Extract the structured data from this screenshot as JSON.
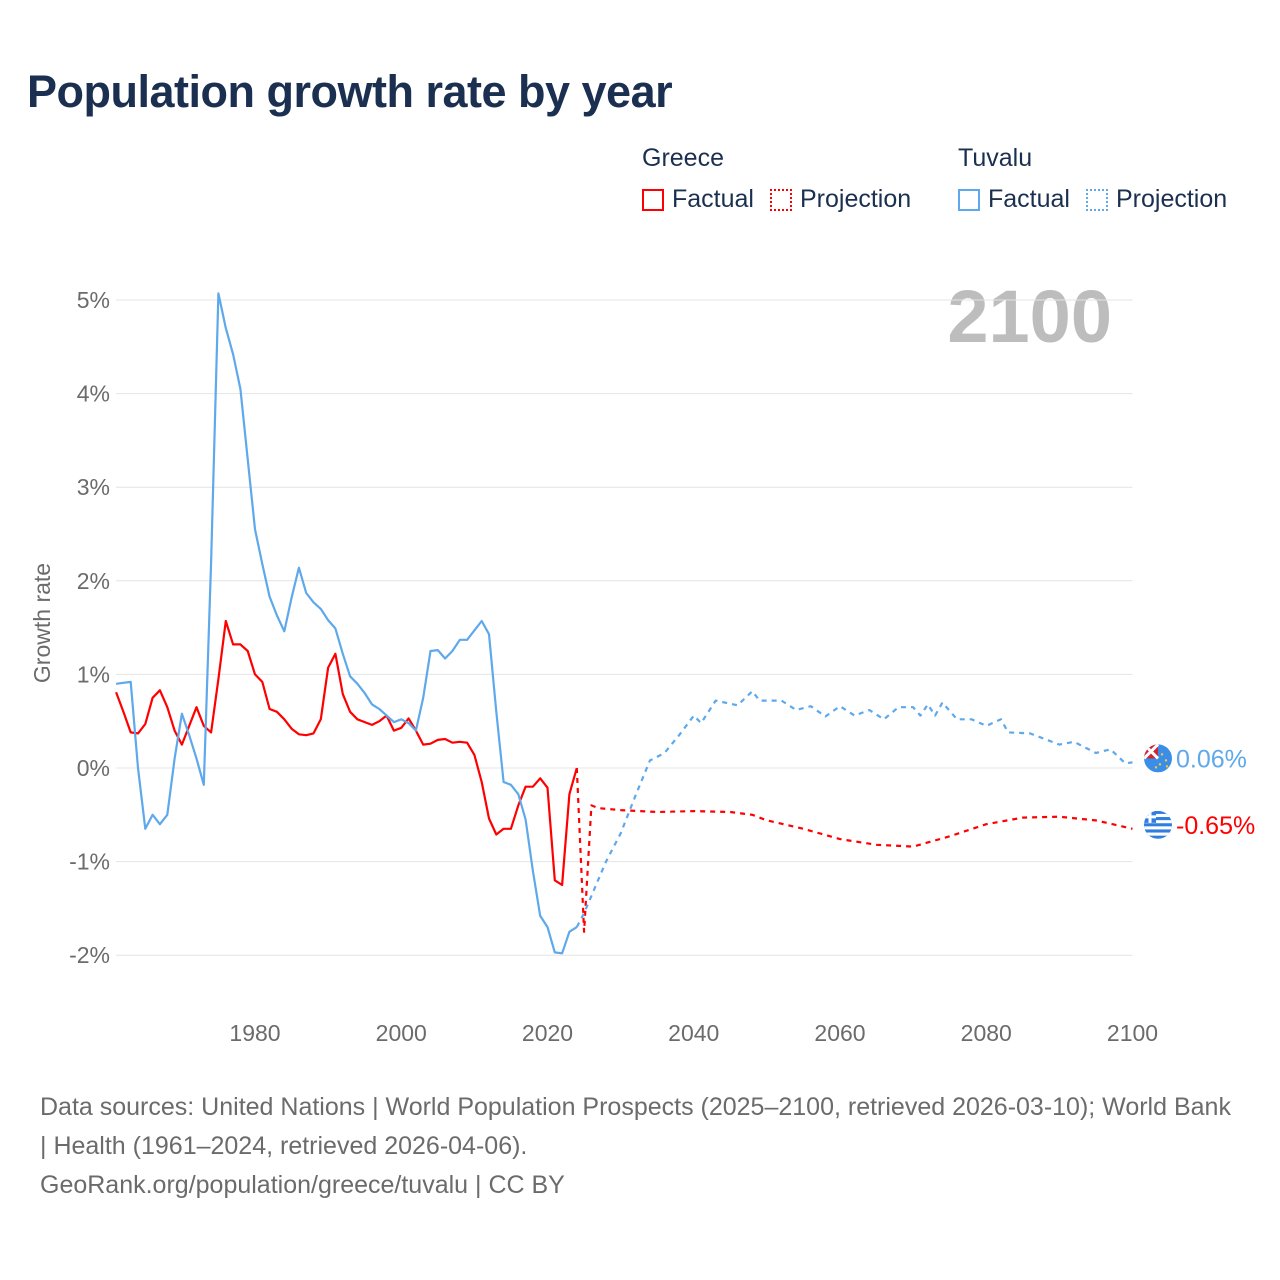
{
  "title": "Population growth rate by year",
  "legend": {
    "groups": [
      {
        "name": "Greece",
        "color": "#ff0000",
        "factual_label": "Factual",
        "projection_label": "Projection"
      },
      {
        "name": "Tuvalu",
        "color": "#5ea8ec",
        "factual_label": "Factual",
        "projection_label": "Projection"
      }
    ]
  },
  "year_watermark": "2100",
  "footer": {
    "sources": "Data sources: United Nations | World Population Prospects (2025–2100, retrieved 2026-03-10); World Bank | Health (1961–2024, retrieved 2026-04-06).",
    "credit": "GeoRank.org/population/greece/tuvalu | CC BY"
  },
  "chart_data": {
    "type": "line",
    "title": "Population growth rate by year",
    "xlabel": "",
    "ylabel": "Growth rate",
    "xlim": [
      1961,
      2100
    ],
    "ylim": [
      -2.5,
      5.3
    ],
    "x_ticks": [
      1980,
      2000,
      2020,
      2040,
      2060,
      2080,
      2100
    ],
    "y_ticks": [
      -2,
      -1,
      0,
      1,
      2,
      3,
      4,
      5
    ],
    "y_tick_labels": [
      "-2%",
      "-1%",
      "0%",
      "1%",
      "2%",
      "3%",
      "4%",
      "5%"
    ],
    "grid": true,
    "legend_position": "top-right",
    "series": [
      {
        "name": "Greece Factual",
        "country": "Greece",
        "style": "solid",
        "color": "#ff0000",
        "x": [
          1961,
          1962,
          1963,
          1964,
          1965,
          1966,
          1967,
          1968,
          1969,
          1970,
          1971,
          1972,
          1973,
          1974,
          1975,
          1976,
          1977,
          1978,
          1979,
          1980,
          1981,
          1982,
          1983,
          1984,
          1985,
          1986,
          1987,
          1988,
          1989,
          1990,
          1991,
          1992,
          1993,
          1994,
          1995,
          1996,
          1997,
          1998,
          1999,
          2000,
          2001,
          2002,
          2003,
          2004,
          2005,
          2006,
          2007,
          2008,
          2009,
          2010,
          2011,
          2012,
          2013,
          2014,
          2015,
          2016,
          2017,
          2018,
          2019,
          2020,
          2021,
          2022,
          2023,
          2024
        ],
        "y": [
          0.81,
          0.6,
          0.38,
          0.37,
          0.47,
          0.75,
          0.83,
          0.65,
          0.4,
          0.25,
          0.45,
          0.65,
          0.45,
          0.38,
          0.95,
          1.57,
          1.32,
          1.32,
          1.25,
          1.0,
          0.92,
          0.63,
          0.6,
          0.52,
          0.42,
          0.36,
          0.35,
          0.37,
          0.52,
          1.07,
          1.22,
          0.79,
          0.6,
          0.52,
          0.49,
          0.46,
          0.5,
          0.56,
          0.4,
          0.43,
          0.53,
          0.4,
          0.25,
          0.26,
          0.3,
          0.31,
          0.27,
          0.28,
          0.27,
          0.14,
          -0.15,
          -0.54,
          -0.71,
          -0.65,
          -0.65,
          -0.4,
          -0.2,
          -0.2,
          -0.11,
          -0.21,
          -1.2,
          -1.25,
          -0.28,
          0.0
        ]
      },
      {
        "name": "Greece Projection",
        "country": "Greece",
        "style": "dotted",
        "color": "#ff0000",
        "x": [
          2024,
          2025,
          2026,
          2027,
          2030,
          2035,
          2040,
          2045,
          2048,
          2050,
          2055,
          2060,
          2065,
          2070,
          2075,
          2080,
          2085,
          2090,
          2095,
          2100
        ],
        "y": [
          0.0,
          -1.75,
          -0.4,
          -0.43,
          -0.45,
          -0.47,
          -0.46,
          -0.47,
          -0.5,
          -0.56,
          -0.65,
          -0.76,
          -0.82,
          -0.84,
          -0.73,
          -0.6,
          -0.53,
          -0.52,
          -0.56,
          -0.65
        ]
      },
      {
        "name": "Tuvalu Factual",
        "country": "Tuvalu",
        "style": "solid",
        "color": "#5ea8ec",
        "x": [
          1961,
          1962,
          1963,
          1964,
          1965,
          1966,
          1967,
          1968,
          1969,
          1970,
          1971,
          1972,
          1973,
          1974,
          1975,
          1976,
          1977,
          1978,
          1979,
          1980,
          1981,
          1982,
          1983,
          1984,
          1985,
          1986,
          1987,
          1988,
          1989,
          1990,
          1991,
          1992,
          1993,
          1994,
          1995,
          1996,
          1997,
          1998,
          1999,
          2000,
          2001,
          2002,
          2003,
          2004,
          2005,
          2006,
          2007,
          2008,
          2009,
          2010,
          2011,
          2012,
          2013,
          2014,
          2015,
          2016,
          2017,
          2018,
          2019,
          2020,
          2021,
          2022,
          2023,
          2024
        ],
        "y": [
          0.9,
          0.91,
          0.92,
          0.0,
          -0.65,
          -0.5,
          -0.6,
          -0.5,
          0.1,
          0.58,
          0.35,
          0.1,
          -0.18,
          2.2,
          5.07,
          4.7,
          4.42,
          4.05,
          3.3,
          2.55,
          2.18,
          1.83,
          1.63,
          1.46,
          1.82,
          2.14,
          1.87,
          1.77,
          1.7,
          1.58,
          1.49,
          1.22,
          0.98,
          0.9,
          0.8,
          0.68,
          0.63,
          0.56,
          0.49,
          0.52,
          0.48,
          0.4,
          0.75,
          1.25,
          1.26,
          1.17,
          1.25,
          1.37,
          1.37,
          1.47,
          1.57,
          1.43,
          0.6,
          -0.15,
          -0.18,
          -0.28,
          -0.55,
          -1.1,
          -1.58,
          -1.7,
          -1.97,
          -1.98,
          -1.75,
          -1.7
        ]
      },
      {
        "name": "Tuvalu Projection",
        "country": "Tuvalu",
        "style": "dotted",
        "color": "#5ea8ec",
        "x": [
          2024,
          2025,
          2028,
          2030,
          2032,
          2034,
          2036,
          2038,
          2040,
          2041,
          2043,
          2046,
          2048,
          2049,
          2052,
          2054,
          2056,
          2058,
          2060,
          2062,
          2064,
          2066,
          2068,
          2070,
          2071,
          2072,
          2073,
          2074,
          2076,
          2078,
          2080,
          2082,
          2083,
          2086,
          2090,
          2092,
          2095,
          2097,
          2099,
          2100
        ],
        "y": [
          -1.7,
          -1.55,
          -1.0,
          -0.7,
          -0.3,
          0.08,
          0.16,
          0.35,
          0.56,
          0.48,
          0.72,
          0.67,
          0.82,
          0.72,
          0.72,
          0.62,
          0.66,
          0.55,
          0.66,
          0.56,
          0.62,
          0.52,
          0.65,
          0.65,
          0.56,
          0.68,
          0.56,
          0.7,
          0.52,
          0.52,
          0.45,
          0.52,
          0.38,
          0.37,
          0.25,
          0.28,
          0.16,
          0.2,
          0.05,
          0.06
        ]
      }
    ],
    "end_labels": [
      {
        "country": "Tuvalu",
        "value": 0.06,
        "text": "0.06%",
        "color": "#5ea8ec"
      },
      {
        "country": "Greece",
        "value": -0.65,
        "text": "-0.65%",
        "color": "#ff0000"
      }
    ]
  }
}
